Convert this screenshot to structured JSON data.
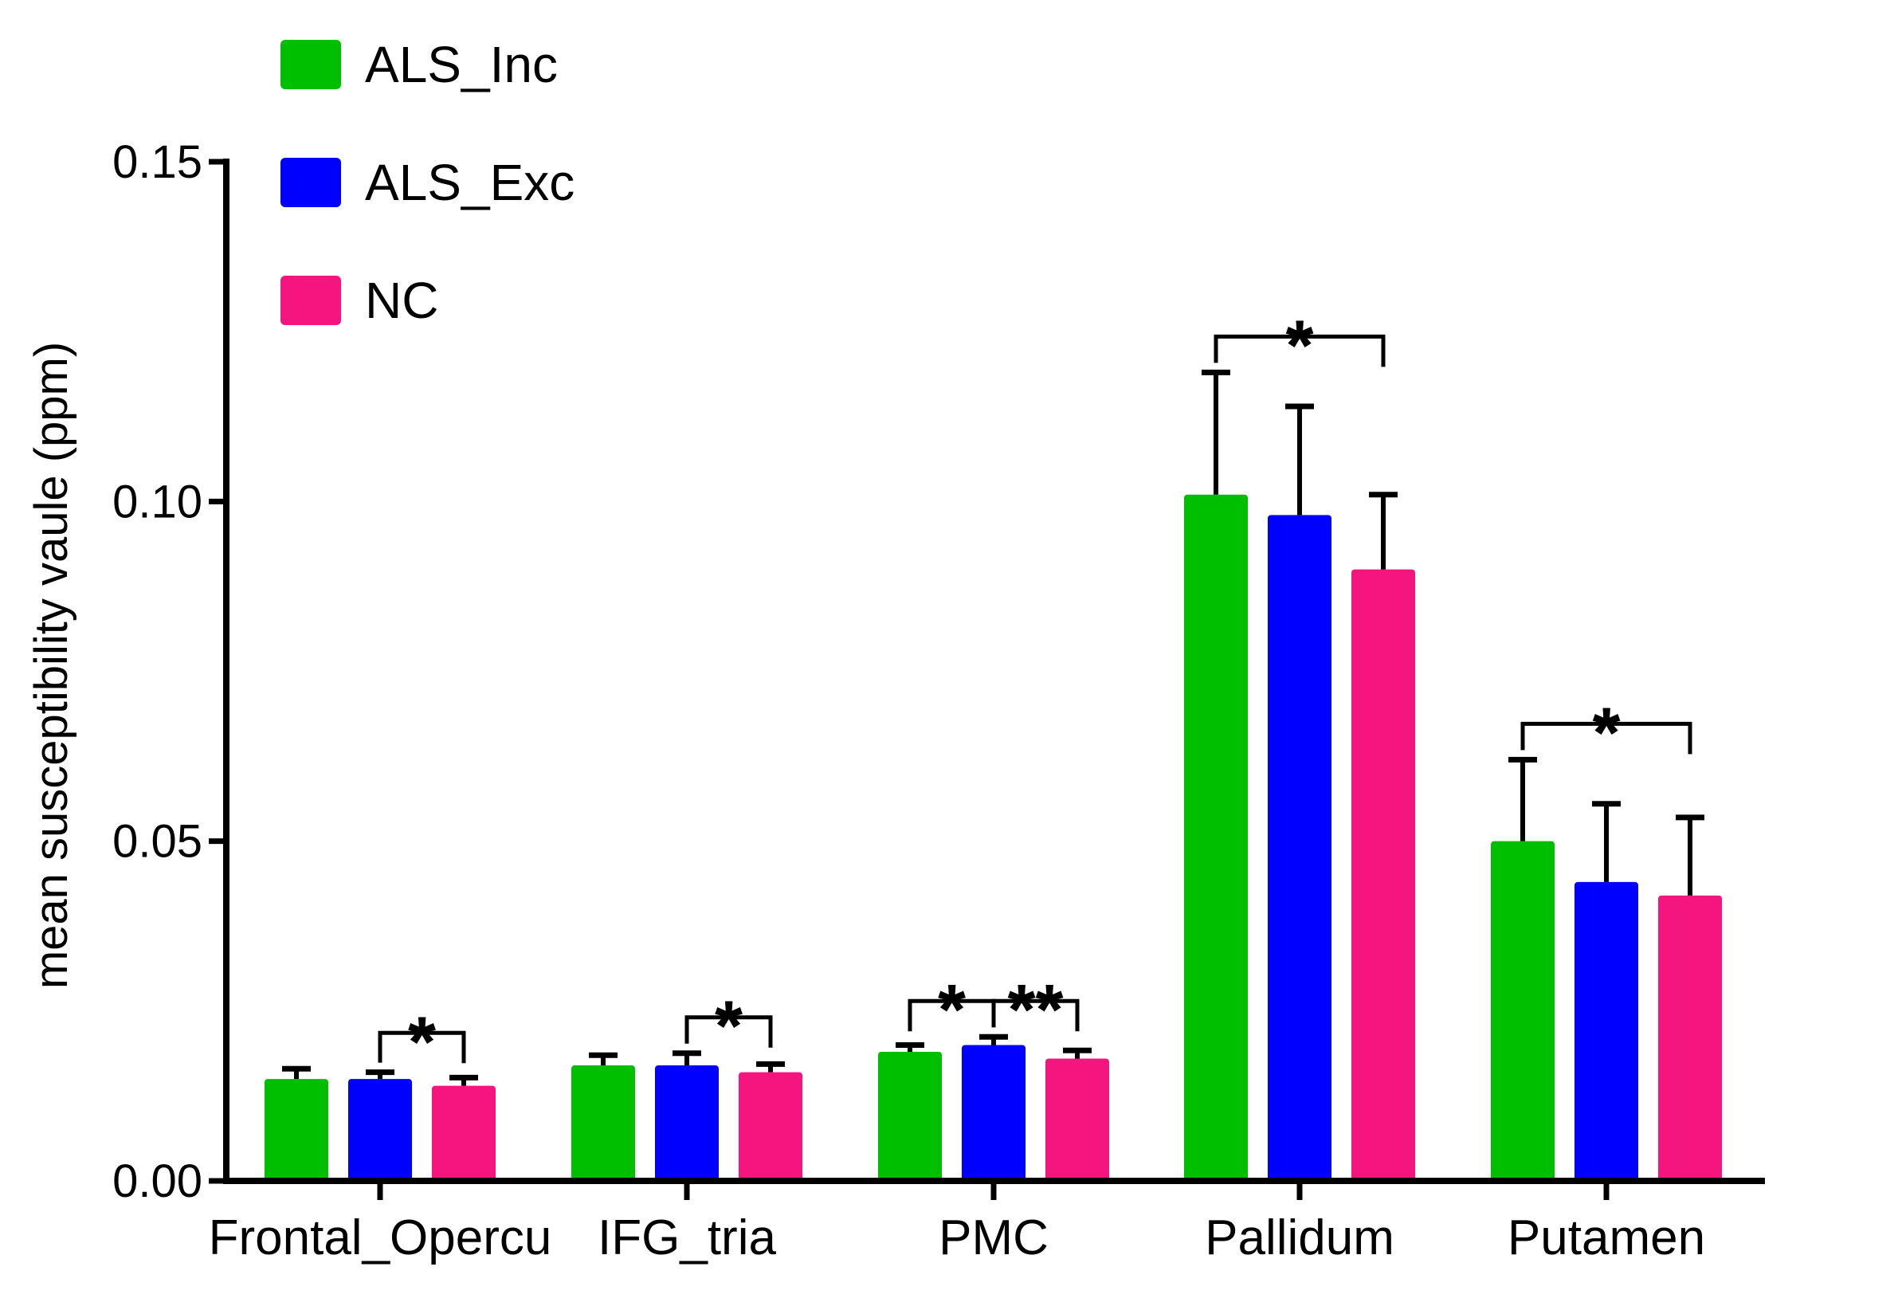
{
  "chart_data": {
    "type": "bar",
    "title": "",
    "xlabel": "",
    "ylabel": "mean susceptibility vaule (ppm)",
    "ylim": [
      0,
      0.15
    ],
    "yticks": [
      "0.00",
      "0.05",
      "0.10",
      "0.15"
    ],
    "ytick_values": [
      0,
      0.05,
      0.1,
      0.15
    ],
    "grid": false,
    "legend_position": "top-left",
    "categories": [
      "Frontal_Opercu",
      "IFG_tria",
      "PMC",
      "Pallidum",
      "Putamen"
    ],
    "series": [
      {
        "name": "ALS_Inc",
        "color": "#00bf00",
        "values": [
          0.015,
          0.017,
          0.019,
          0.101,
          0.05
        ],
        "errors": [
          0.0015,
          0.0015,
          0.001,
          0.018,
          0.012
        ]
      },
      {
        "name": "ALS_Exc",
        "color": "#0000ff",
        "values": [
          0.015,
          0.017,
          0.02,
          0.098,
          0.044
        ],
        "errors": [
          0.001,
          0.0018,
          0.0012,
          0.016,
          0.0115
        ]
      },
      {
        "name": "NC",
        "color": "#f5157e",
        "values": [
          0.014,
          0.016,
          0.018,
          0.09,
          0.042
        ],
        "errors": [
          0.0012,
          0.0012,
          0.0012,
          0.011,
          0.0115
        ]
      }
    ],
    "annotations": [
      {
        "category": 0,
        "from_series": 1,
        "to_series": 2,
        "label": "*"
      },
      {
        "category": 1,
        "from_series": 1,
        "to_series": 2,
        "label": "*"
      },
      {
        "category": 2,
        "from_series": 0,
        "to_series": 1,
        "label": "*"
      },
      {
        "category": 2,
        "from_series": 1,
        "to_series": 2,
        "label": "**"
      },
      {
        "category": 3,
        "from_series": 0,
        "to_series": 2,
        "label": "*"
      },
      {
        "category": 4,
        "from_series": 0,
        "to_series": 2,
        "label": "*"
      }
    ]
  }
}
